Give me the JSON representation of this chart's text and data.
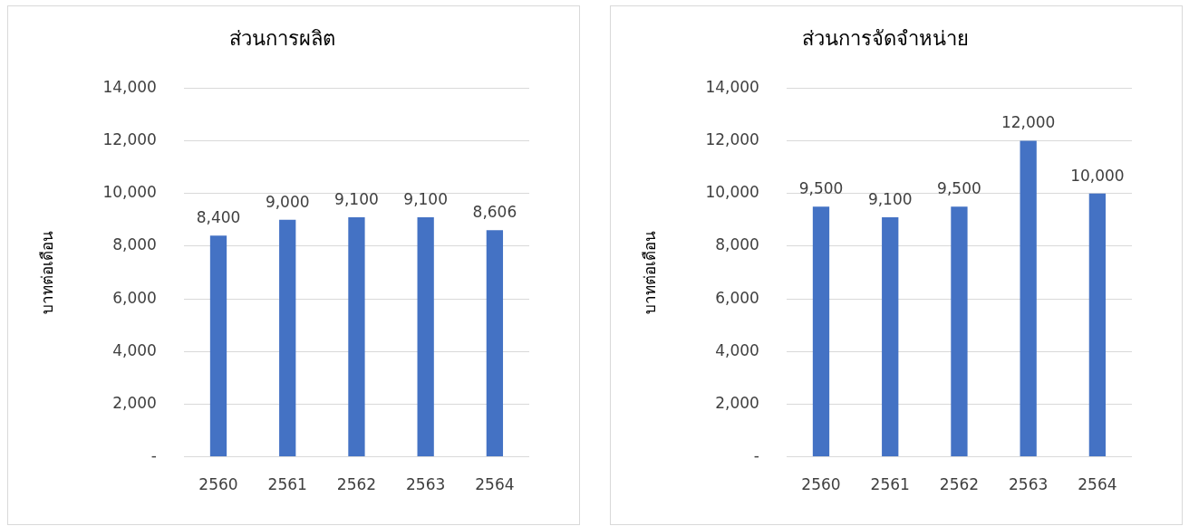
{
  "chart_data": [
    {
      "type": "bar",
      "title": "ส่วนการผลิต",
      "ylabel": "บาทต่อเดือน",
      "categories": [
        "2560",
        "2561",
        "2562",
        "2563",
        "2564"
      ],
      "series": [
        {
          "color": "#4472c4",
          "values": [
            8400,
            9000,
            9100,
            9100,
            8606
          ],
          "value_labels": [
            "8,400",
            "9,000",
            "9,100",
            "9,100",
            "8,606"
          ]
        }
      ],
      "ylim": [
        0,
        14000
      ],
      "yticks": [
        {
          "value": 0,
          "label": "-"
        },
        {
          "value": 2000,
          "label": "2,000"
        },
        {
          "value": 4000,
          "label": "4,000"
        },
        {
          "value": 6000,
          "label": "6,000"
        },
        {
          "value": 8000,
          "label": "8,000"
        },
        {
          "value": 10000,
          "label": "10,000"
        },
        {
          "value": 12000,
          "label": "12,000"
        },
        {
          "value": 14000,
          "label": "14,000"
        }
      ],
      "grid": "y",
      "legend": false
    },
    {
      "type": "bar",
      "title": "ส่วนการจัดจำหน่าย",
      "ylabel": "บาทต่อเดือน",
      "categories": [
        "2560",
        "2561",
        "2562",
        "2563",
        "2564"
      ],
      "series": [
        {
          "color": "#4472c4",
          "values": [
            9500,
            9100,
            9500,
            12000,
            10000
          ],
          "value_labels": [
            "9,500",
            "9,100",
            "9,500",
            "12,000",
            "10,000"
          ]
        }
      ],
      "ylim": [
        0,
        14000
      ],
      "yticks": [
        {
          "value": 0,
          "label": "-"
        },
        {
          "value": 2000,
          "label": "2,000"
        },
        {
          "value": 4000,
          "label": "4,000"
        },
        {
          "value": 6000,
          "label": "6,000"
        },
        {
          "value": 8000,
          "label": "8,000"
        },
        {
          "value": 10000,
          "label": "10,000"
        },
        {
          "value": 12000,
          "label": "12,000"
        },
        {
          "value": 14000,
          "label": "14,000"
        }
      ],
      "grid": "y",
      "legend": false
    }
  ]
}
